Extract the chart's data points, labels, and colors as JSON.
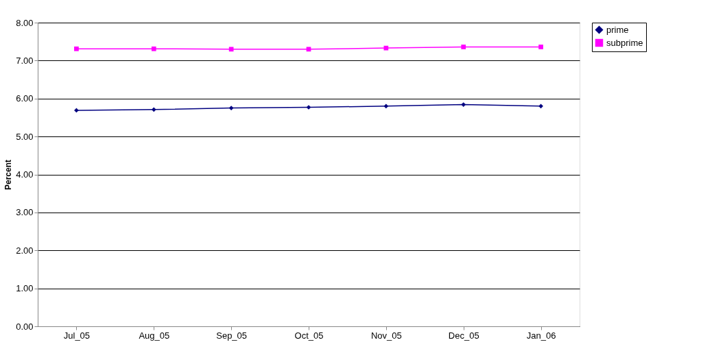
{
  "chart_data": {
    "type": "line",
    "ylabel": "Percent",
    "categories": [
      "Jul_05",
      "Aug_05",
      "Sep_05",
      "Oct_05",
      "Nov_05",
      "Dec_05",
      "Jan_06"
    ],
    "series": [
      {
        "name": "prime",
        "color": "#000080",
        "marker": "diamond",
        "values": [
          5.69,
          5.71,
          5.75,
          5.77,
          5.8,
          5.84,
          5.8
        ]
      },
      {
        "name": "subprime",
        "color": "#ff00ff",
        "marker": "square",
        "values": [
          7.31,
          7.31,
          7.3,
          7.3,
          7.33,
          7.36,
          7.36
        ]
      }
    ],
    "ylim": [
      0,
      8
    ],
    "yticks": [
      {
        "value": 0,
        "label": "0.00"
      },
      {
        "value": 1,
        "label": "1.00"
      },
      {
        "value": 2,
        "label": "2.00"
      },
      {
        "value": 3,
        "label": "3.00"
      },
      {
        "value": 4,
        "label": "4.00"
      },
      {
        "value": 5,
        "label": "5.00"
      },
      {
        "value": 6,
        "label": "6.00"
      },
      {
        "value": 7,
        "label": "7.00"
      },
      {
        "value": 8,
        "label": "8.00"
      }
    ],
    "grid": "y",
    "legend": "right",
    "line_style": "solid"
  }
}
